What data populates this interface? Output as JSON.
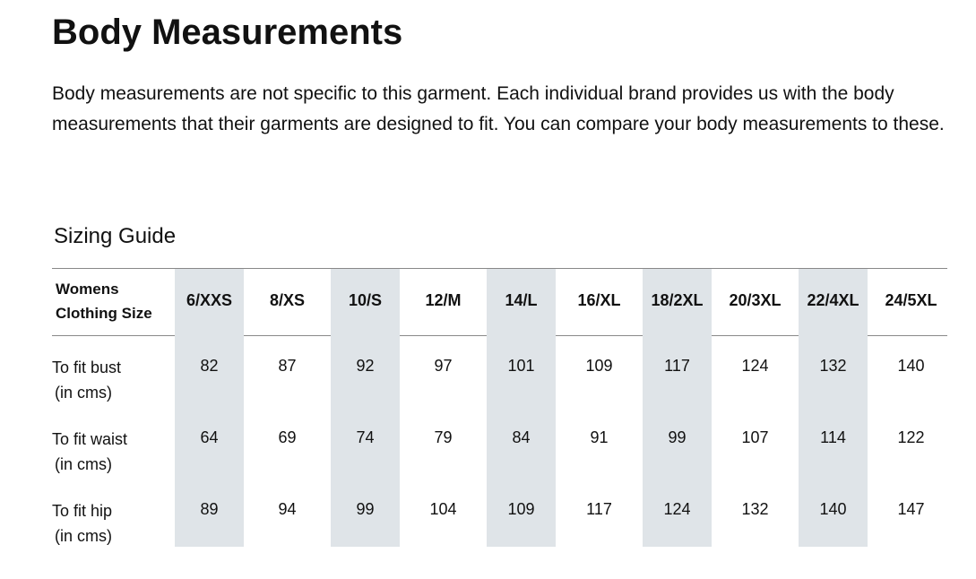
{
  "header": {
    "title": "Body Measurements",
    "description": "Body measurements are not specific to this garment. Each individual brand provides us with the body measurements that their garments are designed to fit. You can compare your body measurements to these."
  },
  "table": {
    "title": "Sizing Guide",
    "corner": [
      "Womens",
      "Clothing Size"
    ],
    "columns": [
      "6/XXS",
      "8/XS",
      "10/S",
      "12/M",
      "14/L",
      "16/XL",
      "18/2XL",
      "20/3XL",
      "22/4XL",
      "24/5XL"
    ],
    "rows": [
      {
        "label": [
          "To fit bust",
          "(in cms)"
        ],
        "values": [
          82,
          87,
          92,
          97,
          101,
          109,
          117,
          124,
          132,
          140
        ]
      },
      {
        "label": [
          "To fit waist",
          "(in cms)"
        ],
        "values": [
          64,
          69,
          74,
          79,
          84,
          91,
          99,
          107,
          114,
          122
        ]
      },
      {
        "label": [
          "To fit hip",
          "(in cms)"
        ],
        "values": [
          89,
          94,
          99,
          104,
          109,
          117,
          124,
          132,
          140,
          147
        ]
      }
    ]
  }
}
